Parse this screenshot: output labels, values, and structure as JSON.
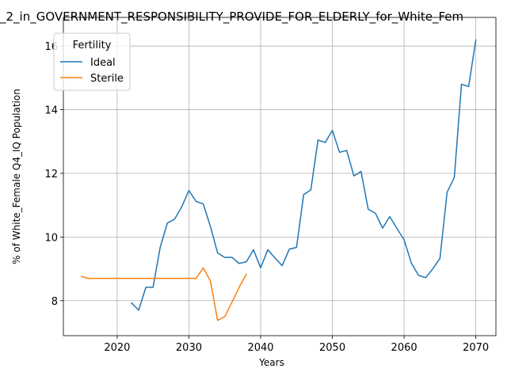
{
  "chart_data": {
    "type": "line",
    "title": "_2_in_GOVERNMENT_RESPONSIBILITY_PROVIDE_FOR_ELDERLY_for_White_Fem",
    "xlabel": "Years",
    "ylabel": "% of White_Female Q4_IQ Population",
    "xlim": [
      2012.5,
      2072.8
    ],
    "ylim": [
      6.9,
      16.9
    ],
    "xticks": [
      2020,
      2030,
      2040,
      2050,
      2060,
      2070
    ],
    "yticks": [
      8,
      10,
      12,
      14,
      16
    ],
    "grid": true,
    "legend": {
      "title": "Fertility",
      "placement": "top-left"
    },
    "series": [
      {
        "name": "Ideal",
        "color": "#1f77b4",
        "points": [
          [
            2022,
            7.93
          ],
          [
            2023,
            7.7
          ],
          [
            2024,
            8.42
          ],
          [
            2025,
            8.42
          ],
          [
            2026,
            9.68
          ],
          [
            2027,
            10.44
          ],
          [
            2028,
            10.56
          ],
          [
            2029,
            10.95
          ],
          [
            2030,
            11.46
          ],
          [
            2031,
            11.12
          ],
          [
            2032,
            11.04
          ],
          [
            2033,
            10.33
          ],
          [
            2034,
            9.5
          ],
          [
            2035,
            9.36
          ],
          [
            2036,
            9.36
          ],
          [
            2037,
            9.17
          ],
          [
            2038,
            9.22
          ],
          [
            2039,
            9.6
          ],
          [
            2040,
            9.03
          ],
          [
            2041,
            9.6
          ],
          [
            2042,
            9.34
          ],
          [
            2043,
            9.1
          ],
          [
            2044,
            9.62
          ],
          [
            2045,
            9.67
          ],
          [
            2046,
            11.33
          ],
          [
            2047,
            11.48
          ],
          [
            2048,
            13.05
          ],
          [
            2049,
            12.97
          ],
          [
            2050,
            13.35
          ],
          [
            2051,
            12.66
          ],
          [
            2052,
            12.72
          ],
          [
            2053,
            11.92
          ],
          [
            2054,
            12.06
          ],
          [
            2055,
            10.87
          ],
          [
            2056,
            10.75
          ],
          [
            2057,
            10.28
          ],
          [
            2058,
            10.64
          ],
          [
            2059,
            10.27
          ],
          [
            2060,
            9.91
          ],
          [
            2061,
            9.19
          ],
          [
            2062,
            8.8
          ],
          [
            2063,
            8.72
          ],
          [
            2064,
            9.0
          ],
          [
            2065,
            9.33
          ],
          [
            2066,
            11.41
          ],
          [
            2067,
            11.87
          ],
          [
            2068,
            14.8
          ],
          [
            2069,
            14.73
          ],
          [
            2070,
            16.19
          ]
        ]
      },
      {
        "name": "Sterile",
        "color": "#ff7f0e",
        "points": [
          [
            2015,
            8.76
          ],
          [
            2016,
            8.7
          ],
          [
            2017,
            8.7
          ],
          [
            2018,
            8.7
          ],
          [
            2019,
            8.7
          ],
          [
            2020,
            8.7
          ],
          [
            2021,
            8.7
          ],
          [
            2022,
            8.7
          ],
          [
            2023,
            8.7
          ],
          [
            2024,
            8.7
          ],
          [
            2025,
            8.7
          ],
          [
            2026,
            8.7
          ],
          [
            2027,
            8.7
          ],
          [
            2028,
            8.7
          ],
          [
            2029,
            8.7
          ],
          [
            2030,
            8.7
          ],
          [
            2031,
            8.7
          ],
          [
            2032,
            9.03
          ],
          [
            2033,
            8.62
          ],
          [
            2034,
            7.38
          ],
          [
            2035,
            7.5
          ],
          [
            2036,
            7.95
          ],
          [
            2037,
            8.42
          ],
          [
            2038,
            8.83
          ]
        ]
      }
    ]
  }
}
